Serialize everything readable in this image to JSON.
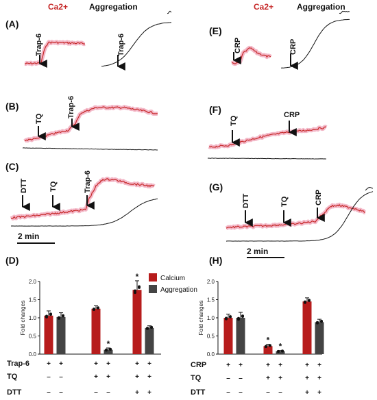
{
  "header": {
    "calcium": "Ca2+",
    "aggregation": "Aggregation"
  },
  "panels": {
    "A": "(A)",
    "B": "(B)",
    "C": "(C)",
    "D": "(D)",
    "E": "(E)",
    "F": "(F)",
    "G": "(G)",
    "H": "(H)"
  },
  "annotations": {
    "trap6": "Trap-6",
    "crp": "CRP",
    "tq": "TQ",
    "dtt": "DTT"
  },
  "scale_bar": "2 min",
  "colors": {
    "calcium_trace": "#c62828",
    "calcium_glow": "#f3b8c8",
    "aggregation_trace": "#111111",
    "calcium_bar": "#b71c1c",
    "aggregation_bar": "#444444"
  },
  "chart_data": [
    {
      "type": "bar",
      "panel": "(D)",
      "ylabel": "Fold changes",
      "ylim": [
        0,
        2.0
      ],
      "yticks": [
        "0.0",
        "0.5",
        "1.0",
        "1.5",
        "2.0"
      ],
      "categories": [
        "Trap-6",
        "TQ + Trap-6",
        "DTT + TQ + Trap-6"
      ],
      "series": [
        {
          "name": "Calcium",
          "values": [
            1.06,
            1.25,
            1.77
          ],
          "errors": [
            0.13,
            0.08,
            0.25
          ],
          "stars": [
            "",
            "",
            "*"
          ]
        },
        {
          "name": "Aggregation",
          "values": [
            1.02,
            0.12,
            0.72
          ],
          "errors": [
            0.12,
            0.05,
            0.06
          ],
          "stars": [
            "",
            "*",
            ""
          ]
        }
      ],
      "legend": [
        "Calcium",
        "Aggregation"
      ],
      "rows": [
        {
          "label": "Trap-6",
          "signs": [
            "+",
            "+",
            "+",
            "+",
            "+",
            "+"
          ]
        },
        {
          "label": "TQ",
          "signs": [
            "–",
            "–",
            "+",
            "+",
            "+",
            "+"
          ]
        },
        {
          "label": "DTT",
          "signs": [
            "–",
            "–",
            "–",
            "–",
            "+",
            "+"
          ]
        }
      ]
    },
    {
      "type": "bar",
      "panel": "(H)",
      "ylabel": "Fold changes",
      "ylim": [
        0,
        2.0
      ],
      "yticks": [
        "0.0",
        "0.5",
        "1.0",
        "1.5",
        "2.0"
      ],
      "categories": [
        "CRP",
        "TQ + CRP",
        "DTT + TQ + CRP"
      ],
      "series": [
        {
          "name": "Calcium",
          "values": [
            1.0,
            0.22,
            1.45
          ],
          "errors": [
            0.1,
            0.05,
            0.1
          ],
          "stars": [
            "",
            "*",
            ""
          ]
        },
        {
          "name": "Aggregation",
          "values": [
            1.0,
            0.08,
            0.88
          ],
          "errors": [
            0.15,
            0.02,
            0.08
          ],
          "stars": [
            "",
            "*",
            ""
          ]
        }
      ],
      "rows": [
        {
          "label": "CRP",
          "signs": [
            "+",
            "+",
            "+",
            "+",
            "+",
            "+"
          ]
        },
        {
          "label": "TQ",
          "signs": [
            "–",
            "–",
            "+",
            "+",
            "+",
            "+"
          ]
        },
        {
          "label": "DTT",
          "signs": [
            "–",
            "–",
            "–",
            "–",
            "+",
            "+"
          ]
        }
      ]
    }
  ]
}
